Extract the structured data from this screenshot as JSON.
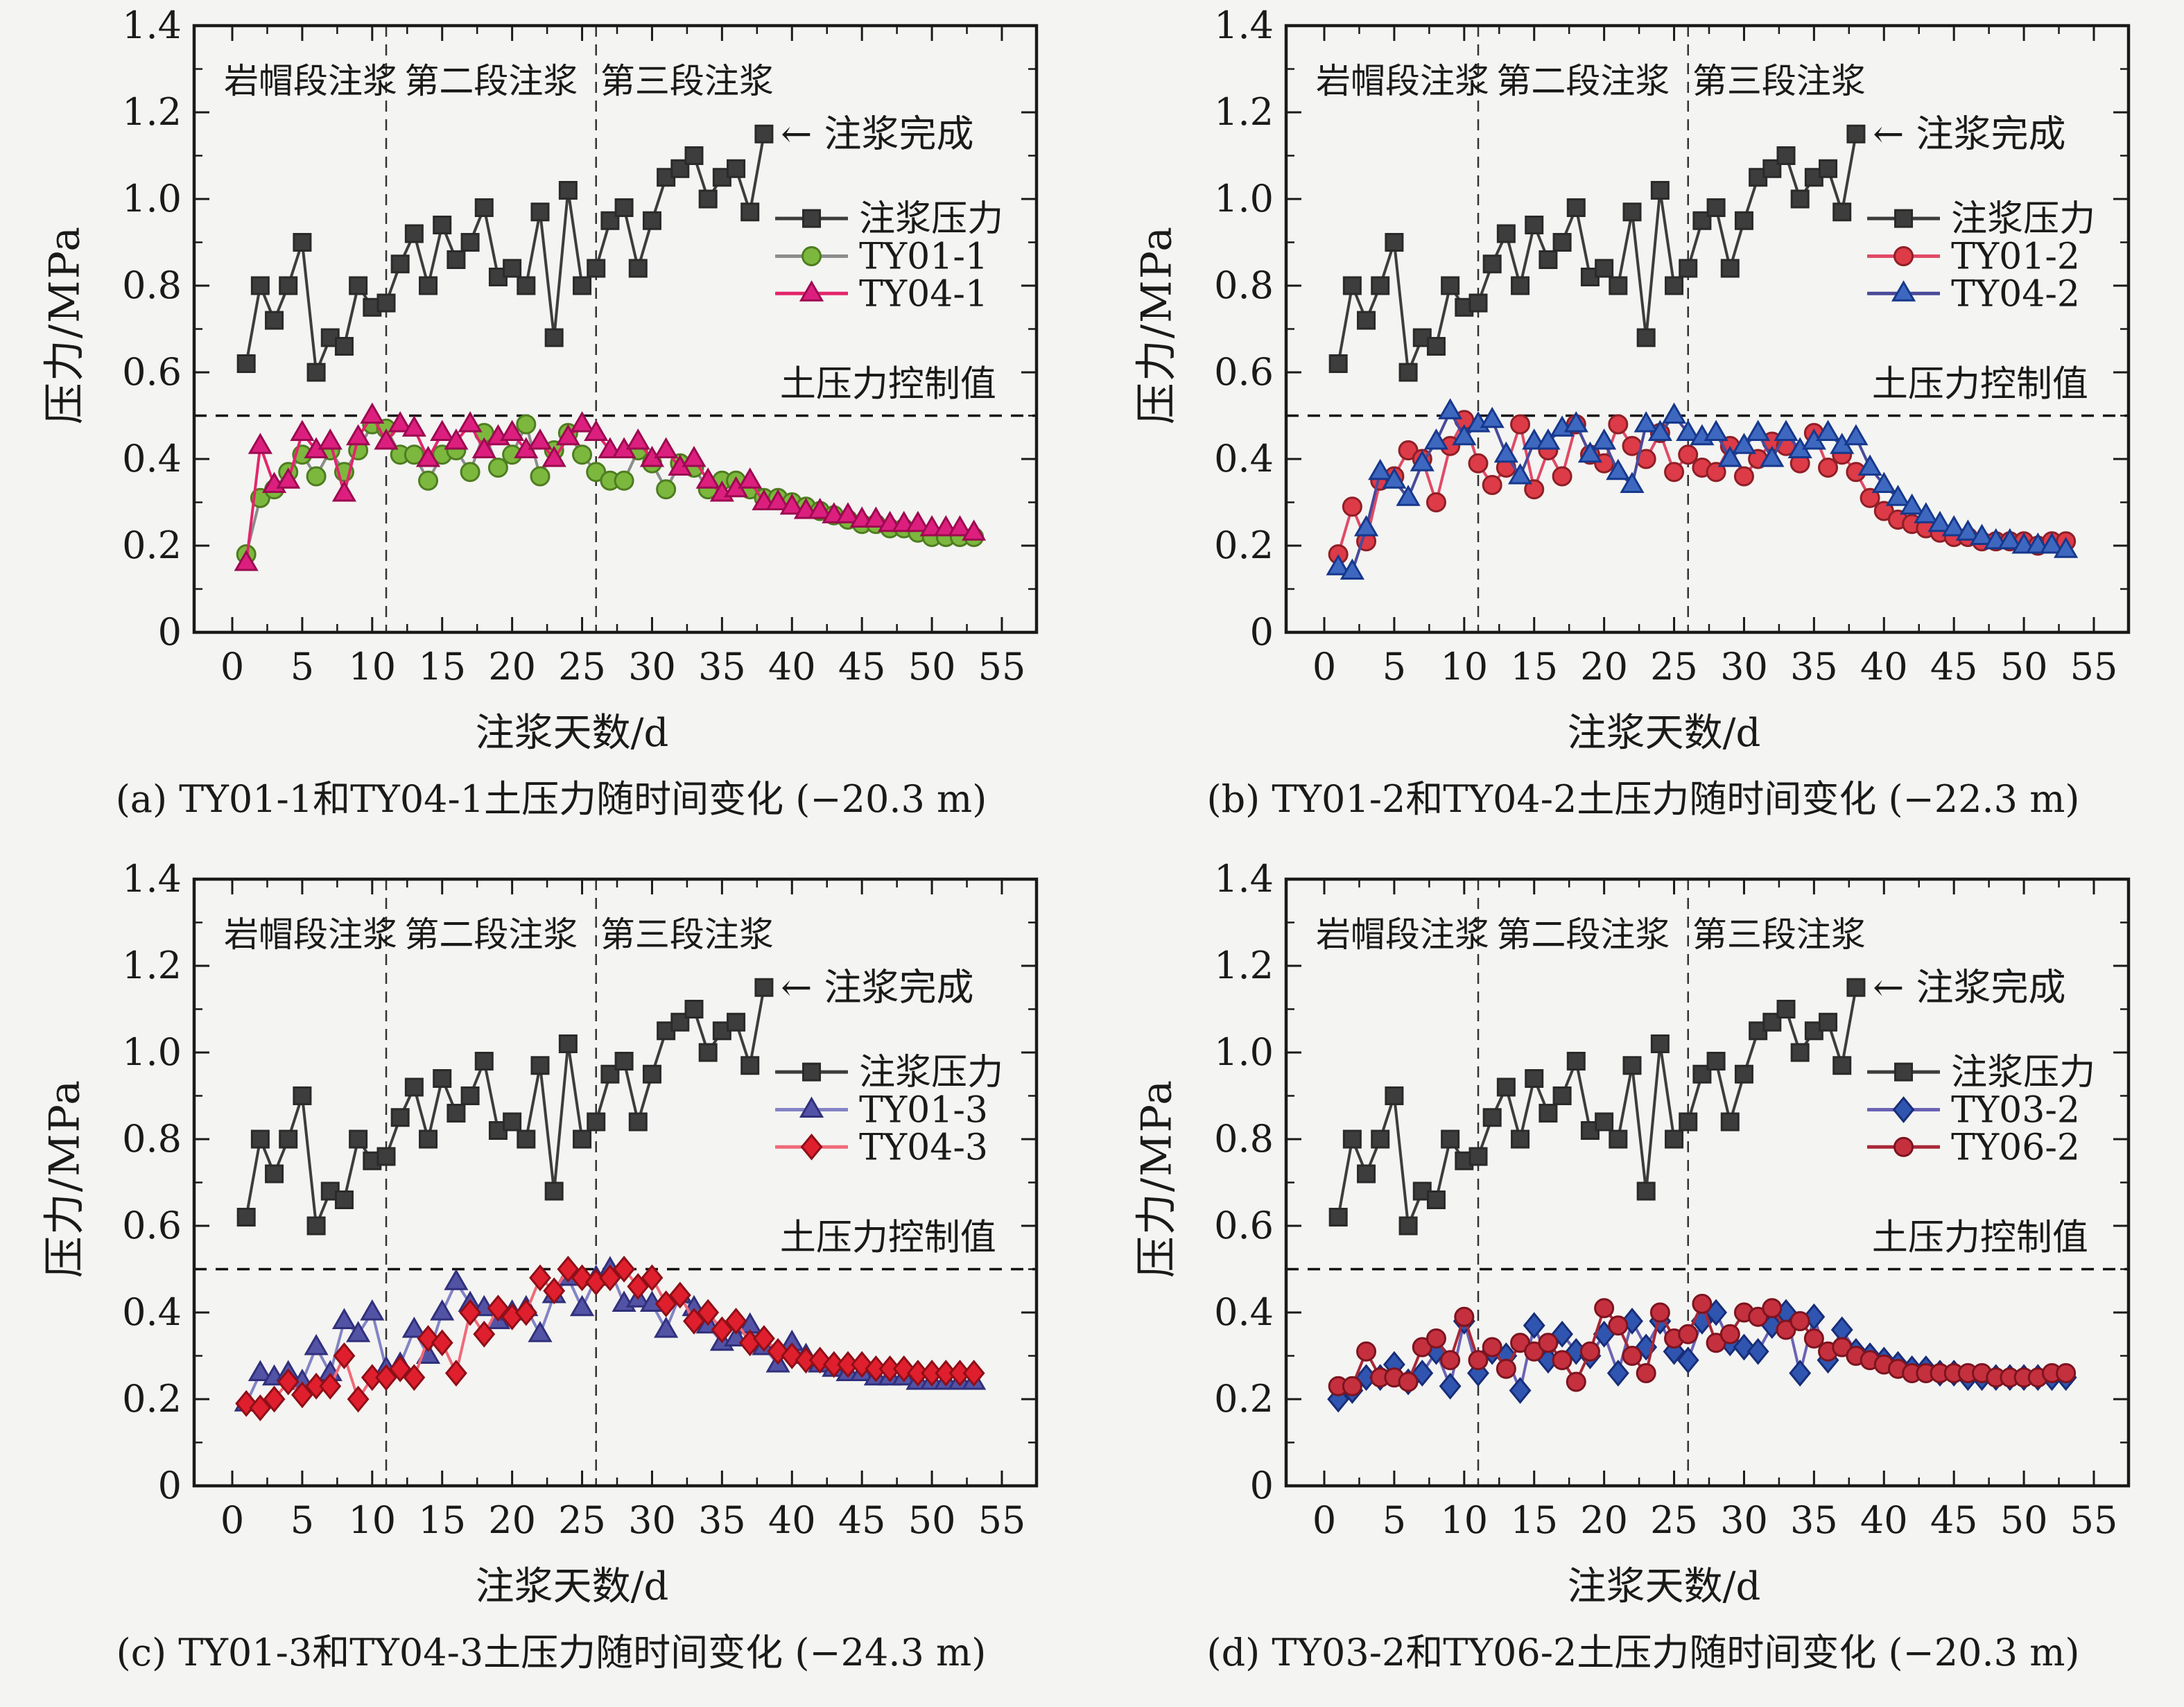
{
  "chart_data": {
    "type": "line",
    "x_label": "注浆天数/d",
    "y_label": "压力/MPa",
    "x_range": [
      0,
      57
    ],
    "y_range": [
      0,
      1.4
    ],
    "x_ticks": [
      0,
      5,
      10,
      15,
      20,
      25,
      30,
      35,
      40,
      45,
      50,
      55
    ],
    "y_ticks": [
      "0",
      "0.2",
      "0.4",
      "0.6",
      "0.8",
      "1.0",
      "1.2",
      "1.4"
    ],
    "grid": "off",
    "legend_position": "inside-right",
    "frame_color": "#1a1a1a",
    "background": "#f4f4f2",
    "regions": {
      "labels": [
        "岩帽段注浆",
        "第二段注浆",
        "第三段注浆"
      ],
      "boundaries_day": [
        11,
        26
      ],
      "label_centers_day": [
        5.6,
        18.5,
        32.5
      ]
    },
    "control_line": {
      "value": 0.5,
      "label": "土压力控制值",
      "color": "#111111"
    },
    "complete_annotation": {
      "label": "← 注浆完成",
      "at_day": 38,
      "at_value": 1.15
    },
    "grouting_pressure": {
      "name": "注浆压力",
      "marker": "square",
      "fill": "#3d3d3d",
      "edge": "#2a2a2a",
      "line": "#3d3d3d",
      "days": [
        1,
        2,
        3,
        4,
        5,
        6,
        7,
        8,
        9,
        10,
        11,
        12,
        13,
        14,
        15,
        16,
        17,
        18,
        19,
        20,
        21,
        22,
        23,
        24,
        25,
        26,
        27,
        28,
        29,
        30,
        31,
        32,
        33,
        34,
        35,
        36,
        37,
        38
      ],
      "values": [
        0.62,
        0.8,
        0.72,
        0.8,
        0.9,
        0.6,
        0.68,
        0.66,
        0.8,
        0.75,
        0.76,
        0.85,
        0.92,
        0.8,
        0.94,
        0.86,
        0.9,
        0.98,
        0.82,
        0.84,
        0.8,
        0.97,
        0.68,
        1.02,
        0.8,
        0.84,
        0.95,
        0.98,
        0.84,
        0.95,
        1.05,
        1.07,
        1.1,
        1.0,
        1.05,
        1.07,
        0.97,
        1.15
      ]
    },
    "soil_days": [
      1,
      2,
      3,
      4,
      5,
      6,
      7,
      8,
      9,
      10,
      11,
      12,
      13,
      14,
      15,
      16,
      17,
      18,
      19,
      20,
      21,
      22,
      23,
      24,
      25,
      26,
      27,
      28,
      29,
      30,
      31,
      32,
      33,
      34,
      35,
      36,
      37,
      38,
      39,
      40,
      41,
      42,
      43,
      44,
      45,
      46,
      47,
      48,
      49,
      50,
      51,
      52,
      53
    ],
    "panels": [
      {
        "id": "a",
        "caption": "(a) TY01-1和TY04-1土压力随时间变化 (−20.3 m)",
        "series": [
          {
            "name": "TY01-1",
            "marker": "circle",
            "fill": "#7cb83e",
            "edge": "#4e7d20",
            "line": "#8c8c8c",
            "values": [
              0.18,
              0.31,
              0.33,
              0.37,
              0.41,
              0.36,
              0.42,
              0.37,
              0.42,
              0.48,
              0.47,
              0.41,
              0.41,
              0.35,
              0.41,
              0.42,
              0.37,
              0.46,
              0.38,
              0.41,
              0.48,
              0.36,
              0.42,
              0.46,
              0.41,
              0.37,
              0.35,
              0.35,
              0.42,
              0.39,
              0.33,
              0.39,
              0.38,
              0.33,
              0.35,
              0.35,
              0.33,
              0.31,
              0.31,
              0.3,
              0.29,
              0.28,
              0.27,
              0.26,
              0.25,
              0.25,
              0.24,
              0.24,
              0.23,
              0.22,
              0.22,
              0.22,
              0.22
            ]
          },
          {
            "name": "TY04-1",
            "marker": "triangle",
            "fill": "#dc1f7e",
            "edge": "#9c0a50",
            "line": "#e3256b",
            "values": [
              0.16,
              0.43,
              0.34,
              0.35,
              0.46,
              0.42,
              0.44,
              0.32,
              0.45,
              0.5,
              0.44,
              0.48,
              0.47,
              0.4,
              0.46,
              0.44,
              0.48,
              0.42,
              0.45,
              0.46,
              0.42,
              0.44,
              0.4,
              0.45,
              0.48,
              0.46,
              0.42,
              0.42,
              0.44,
              0.4,
              0.42,
              0.38,
              0.4,
              0.35,
              0.32,
              0.33,
              0.35,
              0.3,
              0.3,
              0.29,
              0.28,
              0.28,
              0.27,
              0.27,
              0.26,
              0.26,
              0.25,
              0.25,
              0.25,
              0.24,
              0.24,
              0.24,
              0.23
            ]
          }
        ]
      },
      {
        "id": "b",
        "caption": "(b) TY01-2和TY04-2土压力随时间变化 (−22.3 m)",
        "series": [
          {
            "name": "TY01-2",
            "marker": "circle",
            "fill": "#dd3b47",
            "edge": "#8f1f26",
            "line": "#e04a66",
            "values": [
              0.18,
              0.29,
              0.21,
              0.35,
              0.36,
              0.42,
              0.4,
              0.3,
              0.43,
              0.49,
              0.39,
              0.34,
              0.38,
              0.48,
              0.33,
              0.42,
              0.36,
              0.48,
              0.41,
              0.39,
              0.48,
              0.43,
              0.4,
              0.46,
              0.37,
              0.41,
              0.38,
              0.37,
              0.43,
              0.36,
              0.4,
              0.44,
              0.43,
              0.39,
              0.46,
              0.38,
              0.41,
              0.37,
              0.31,
              0.28,
              0.26,
              0.25,
              0.24,
              0.23,
              0.22,
              0.22,
              0.21,
              0.21,
              0.21,
              0.21,
              0.2,
              0.21,
              0.21
            ]
          },
          {
            "name": "TY04-2",
            "marker": "triangle",
            "fill": "#3e68c0",
            "edge": "#16388c",
            "line": "#4a4a99",
            "values": [
              0.15,
              0.14,
              0.24,
              0.37,
              0.35,
              0.31,
              0.39,
              0.44,
              0.51,
              0.45,
              0.48,
              0.49,
              0.41,
              0.36,
              0.44,
              0.44,
              0.47,
              0.48,
              0.41,
              0.44,
              0.37,
              0.34,
              0.48,
              0.46,
              0.5,
              0.46,
              0.45,
              0.46,
              0.4,
              0.43,
              0.46,
              0.4,
              0.46,
              0.42,
              0.44,
              0.46,
              0.43,
              0.45,
              0.38,
              0.34,
              0.31,
              0.29,
              0.27,
              0.25,
              0.24,
              0.23,
              0.22,
              0.21,
              0.21,
              0.2,
              0.2,
              0.2,
              0.19
            ]
          }
        ]
      },
      {
        "id": "c",
        "caption": "(c) TY01-3和TY04-3土压力随时间变化 (−24.3 m)",
        "series": [
          {
            "name": "TY01-3",
            "marker": "triangle",
            "fill": "#5353a6",
            "edge": "#30307c",
            "line": "#8383c6",
            "values": [
              0.19,
              0.26,
              0.25,
              0.26,
              0.24,
              0.32,
              0.26,
              0.38,
              0.35,
              0.4,
              0.27,
              0.28,
              0.36,
              0.3,
              0.4,
              0.47,
              0.42,
              0.41,
              0.38,
              0.4,
              0.41,
              0.35,
              0.44,
              0.48,
              0.41,
              0.48,
              0.5,
              0.42,
              0.43,
              0.42,
              0.36,
              0.44,
              0.41,
              0.37,
              0.33,
              0.34,
              0.37,
              0.32,
              0.28,
              0.33,
              0.3,
              0.28,
              0.27,
              0.26,
              0.26,
              0.25,
              0.25,
              0.25,
              0.24,
              0.24,
              0.24,
              0.24,
              0.24
            ]
          },
          {
            "name": "TY04-3",
            "marker": "diamond",
            "fill": "#df1f2d",
            "edge": "#8e0f18",
            "line": "#ef6a78",
            "values": [
              0.19,
              0.18,
              0.2,
              0.24,
              0.21,
              0.23,
              0.23,
              0.3,
              0.2,
              0.25,
              0.25,
              0.27,
              0.25,
              0.34,
              0.33,
              0.26,
              0.4,
              0.35,
              0.41,
              0.39,
              0.4,
              0.48,
              0.45,
              0.5,
              0.48,
              0.47,
              0.48,
              0.5,
              0.46,
              0.48,
              0.42,
              0.44,
              0.38,
              0.4,
              0.36,
              0.38,
              0.33,
              0.34,
              0.31,
              0.3,
              0.29,
              0.29,
              0.28,
              0.28,
              0.28,
              0.27,
              0.27,
              0.27,
              0.26,
              0.26,
              0.26,
              0.26,
              0.26
            ]
          }
        ]
      },
      {
        "id": "d",
        "caption": "(d) TY03-2和TY06-2土压力随时间变化 (−20.3 m)",
        "series": [
          {
            "name": "TY03-2",
            "marker": "diamond",
            "fill": "#2f55b0",
            "edge": "#182d78",
            "line": "#6a63b5",
            "values": [
              0.2,
              0.22,
              0.25,
              0.25,
              0.28,
              0.24,
              0.26,
              0.31,
              0.23,
              0.38,
              0.26,
              0.31,
              0.3,
              0.22,
              0.37,
              0.29,
              0.35,
              0.31,
              0.3,
              0.35,
              0.26,
              0.38,
              0.32,
              0.38,
              0.31,
              0.29,
              0.38,
              0.4,
              0.33,
              0.32,
              0.31,
              0.37,
              0.4,
              0.26,
              0.39,
              0.29,
              0.36,
              0.31,
              0.3,
              0.29,
              0.28,
              0.27,
              0.27,
              0.26,
              0.26,
              0.25,
              0.25,
              0.25,
              0.25,
              0.25,
              0.25,
              0.25,
              0.25
            ]
          },
          {
            "name": "TY06-2",
            "marker": "circle",
            "fill": "#c5303e",
            "edge": "#7c141f",
            "line": "#a82836",
            "values": [
              0.23,
              0.23,
              0.31,
              0.25,
              0.25,
              0.24,
              0.32,
              0.34,
              0.29,
              0.39,
              0.29,
              0.32,
              0.27,
              0.33,
              0.31,
              0.33,
              0.29,
              0.24,
              0.31,
              0.41,
              0.37,
              0.3,
              0.26,
              0.4,
              0.34,
              0.35,
              0.42,
              0.33,
              0.35,
              0.4,
              0.39,
              0.41,
              0.36,
              0.38,
              0.34,
              0.31,
              0.32,
              0.3,
              0.29,
              0.28,
              0.27,
              0.26,
              0.26,
              0.26,
              0.26,
              0.26,
              0.26,
              0.25,
              0.25,
              0.25,
              0.25,
              0.26,
              0.26
            ]
          }
        ]
      }
    ]
  }
}
